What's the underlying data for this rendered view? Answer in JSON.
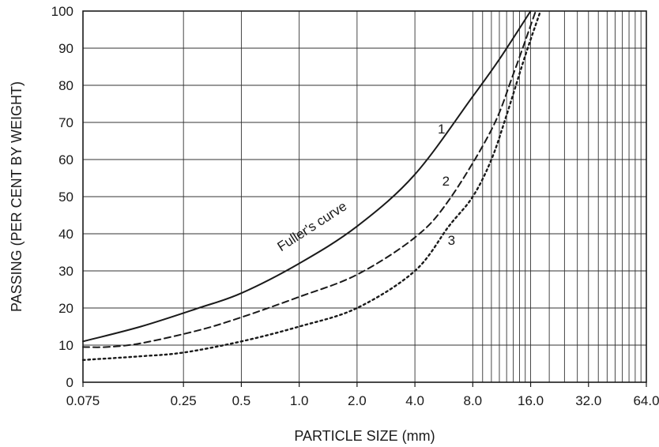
{
  "chart_data": {
    "type": "line",
    "xlabel": "PARTICLE SIZE (mm)",
    "ylabel": "PASSING (PER CENT BY WEIGHT)",
    "x_scale": "log",
    "grid": true,
    "xlim": [
      0.075,
      64.0
    ],
    "ylim": [
      0,
      100
    ],
    "x_ticks": [
      0.075,
      0.25,
      0.5,
      1.0,
      2.0,
      4.0,
      8.0,
      16.0,
      32.0,
      64.0
    ],
    "x_tick_labels": [
      "0.075",
      "0.25",
      "0.5",
      "1.0",
      "2.0",
      "4.0",
      "8.0",
      "16.0",
      "32.0",
      "64.0"
    ],
    "y_ticks": [
      0,
      10,
      20,
      30,
      40,
      50,
      60,
      70,
      80,
      90,
      100
    ],
    "y_tick_labels": [
      "0",
      "10",
      "20",
      "30",
      "40",
      "50",
      "60",
      "70",
      "80",
      "90",
      "100"
    ],
    "series": [
      {
        "name": "1",
        "style": "solid",
        "x": [
          0.075,
          0.15,
          0.3,
          0.5,
          1.0,
          2.0,
          4.0,
          8.0,
          11.0,
          16.0
        ],
        "y": [
          11,
          15,
          20,
          24,
          32,
          42,
          56,
          77,
          87,
          100
        ]
      },
      {
        "name": "2",
        "style": "dashed",
        "x": [
          0.075,
          0.1,
          0.15,
          0.3,
          0.5,
          1.0,
          2.0,
          4.0,
          6.0,
          10.0,
          13.0,
          17.0
        ],
        "y": [
          9.5,
          9.5,
          10.5,
          14,
          17.5,
          23,
          29,
          39,
          49,
          68,
          83,
          100
        ]
      },
      {
        "name": "3",
        "style": "dotted",
        "x": [
          0.075,
          0.15,
          0.25,
          0.5,
          1.0,
          2.0,
          4.0,
          6.0,
          8.0,
          10.0,
          12.0,
          15.0,
          18.0
        ],
        "y": [
          6,
          7,
          8,
          11,
          15,
          20,
          30,
          42,
          50,
          60,
          72,
          88,
          100
        ]
      }
    ],
    "annotations": [
      {
        "text": "Fuller's curve",
        "x": 1.2,
        "y": 41
      },
      {
        "text": "1",
        "x": 5.5,
        "y": 67
      },
      {
        "text": "2",
        "x": 5.8,
        "y": 53
      },
      {
        "text": "3",
        "x": 6.2,
        "y": 37
      }
    ]
  }
}
